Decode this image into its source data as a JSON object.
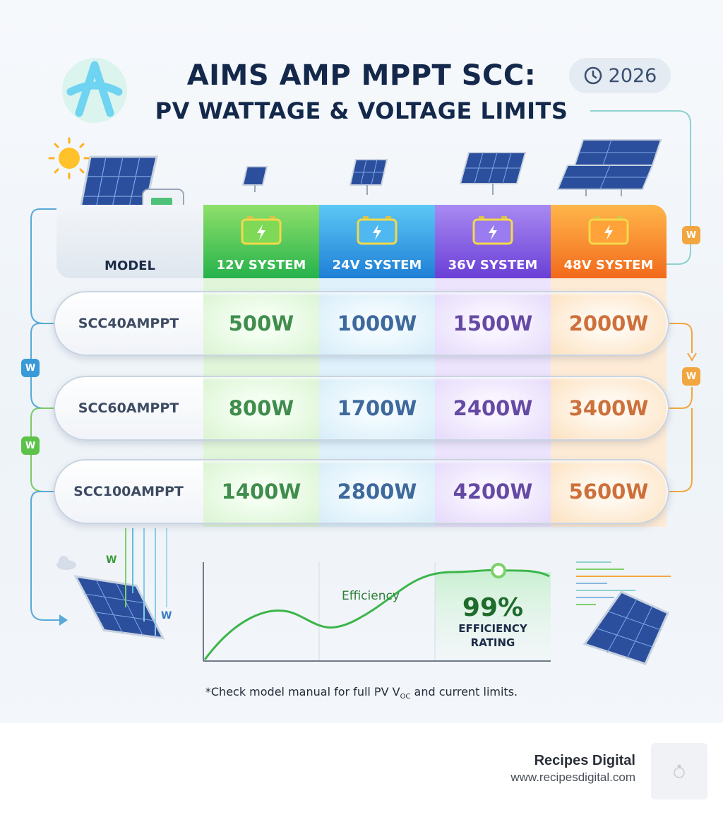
{
  "title": {
    "line1": "AIMS AMP MPPT SCC:",
    "line2": "PV WATTAGE & VOLTAGE LIMITS"
  },
  "year_badge": "2026",
  "table": {
    "model_header": "MODEL",
    "systems": [
      "12V SYSTEM",
      "24V SYSTEM",
      "36V SYSTEM",
      "48V SYSTEM"
    ],
    "rows": [
      {
        "model": "SCC40AMPPT",
        "values": [
          "500W",
          "1000W",
          "1500W",
          "2000W"
        ]
      },
      {
        "model": "SCC60AMPPT",
        "values": [
          "800W",
          "1700W",
          "2400W",
          "3400W"
        ]
      },
      {
        "model": "SCC100AMPPT",
        "values": [
          "1400W",
          "2800W",
          "4200W",
          "5600W"
        ]
      }
    ]
  },
  "badge_letter": "W",
  "efficiency": {
    "label": "Efficiency",
    "value": "99%",
    "rating_line1": "EFFICIENCY",
    "rating_line2": "RATING"
  },
  "footnote": {
    "before": "*Check model manual for full PV V",
    "sub": "OC",
    "after": " and current limits."
  },
  "brand": {
    "name": "Recipes Digital",
    "url": "www.recipesdigital.com"
  },
  "colors": {
    "title": "#13284b",
    "system_12v": "#27b24c",
    "system_24v": "#1f7fd6",
    "system_36v": "#6a3fd6",
    "system_48v": "#f26a1c"
  },
  "icons": [
    "logo-a-icon",
    "clock-icon",
    "sun-icon",
    "solar-panel-icon",
    "charge-controller-icon",
    "battery-icon",
    "cloud-icon"
  ]
}
